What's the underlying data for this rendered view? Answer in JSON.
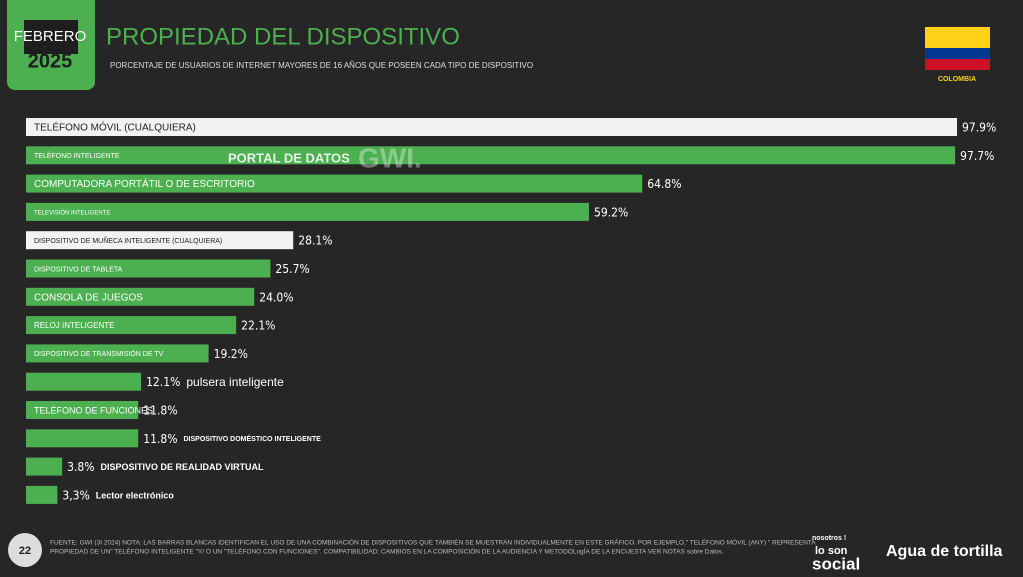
{
  "header": {
    "month": "FEBRERO",
    "year": "2025",
    "country": "COLOMBIA"
  },
  "chart_data": {
    "type": "bar",
    "title": "PROPIEDAD DEL DISPOSITIVO",
    "subtitle": "PORCENTAJE DE USUARIOS DE INTERNET MAYORES DE 16 AÑOS QUE POSEEN CADA TIPO DE DISPOSITIVO",
    "categories": [
      "TELÉFONO MÓVIL (CUALQUIERA)",
      "TELÉFONO INTELIGENTE",
      "COMPUTADORA PORTÁTIL O DE ESCRITORIO",
      "TELEVISIÓN INTELIGENTE",
      "DISPOSITIVO DE MUÑECA INTELIGENTE (CUALQUIERA)",
      "DISPOSITIVO DE TABLETA",
      "CONSOLA DE JUEGOS",
      "RELOJ INTELIGENTE",
      "DISPOSITIVO DE TRANSMISIÓN DE TV",
      "pulsera inteligente",
      "TELÉFONO DE FUNCIONES",
      "DISPOSITIVO DOMÉSTICO INTELIGENTE",
      "DISPOSITIVO DE REALIDAD VIRTUAL",
      "Lector electrónico"
    ],
    "values": [
      97.9,
      97.7,
      64.8,
      59.2,
      28.1,
      25.7,
      24.0,
      22.1,
      19.2,
      12.1,
      11.8,
      11.8,
      3.8,
      3.3
    ],
    "value_labels": [
      "97.9%",
      "97.7%",
      "64.8%",
      "59.2%",
      "28.1%",
      "25.7%",
      "24.0%",
      "22.1%",
      "19.2%",
      "12.1%",
      "11.8%",
      "11.8%",
      "3.8%",
      "3,3%"
    ],
    "colors": [
      "#f2f2f2",
      "#4caf50",
      "#4caf50",
      "#4caf50",
      "#f2f2f2",
      "#4caf50",
      "#4caf50",
      "#4caf50",
      "#4caf50",
      "#4caf50",
      "#4caf50",
      "#4caf50",
      "#4caf50",
      "#4caf50"
    ]
  },
  "watermark": {
    "portal": "PORTAL DE DATOS",
    "brand": "GWI."
  },
  "footer": {
    "page": "22",
    "note": "FUENTE: GWI (3I 2024) NOTA: LAS BARRAS BLANCAS IDENTIFICAN EL USO DE UNA COMBINACIÓN DE DISPOSITIVOS QUE TAMBIÉN SE MUESTRAN INDIVIDUALMENTE EN ESTE GRÁFICO. POR EJEMPLO,\" TELÉFONO MÓVIL (ANY) \" REPRESENTA",
    "note2": "PROPIEDAD DE UN\" TELÉFONO INTELIGENTE \"Y/ O UN \"TELÉFONO CON FUNCIONES\". COMPATIBILIDAD: CAMBIOS EN LA COMPOSICIÓN DE LA AUDIENCIA Y METODOLogÍA DE LA ENCUESTA VER NOTAS sobre Datos.",
    "logo1a": "nosotros !",
    "logo1b": "lo son",
    "logo1c": "social",
    "logo2": "Agua de tortilla"
  }
}
